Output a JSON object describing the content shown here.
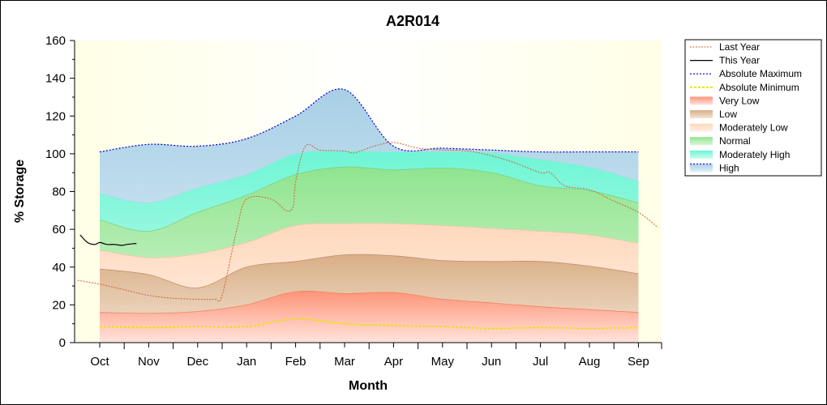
{
  "chart_data": {
    "type": "area",
    "title": "A2R014",
    "xlabel": "Month",
    "ylabel": "% Storage",
    "ylim": [
      0,
      160
    ],
    "yticks": [
      0,
      20,
      40,
      60,
      80,
      100,
      120,
      140,
      160
    ],
    "categories": [
      "Oct",
      "Nov",
      "Dec",
      "Jan",
      "Feb",
      "Mar",
      "Apr",
      "May",
      "Jun",
      "Jul",
      "Aug",
      "Sep"
    ],
    "grid": false,
    "legend_position": "right",
    "colors": {
      "very_low": "#ff9a80",
      "low": "#dcb48c",
      "moderately_low": "#ffdcc0",
      "normal": "#96e696",
      "moderately_high": "#78f0d2",
      "high": "#a0c8e6",
      "last_year": "#cc6633",
      "this_year": "#000000",
      "absolute_maximum": "#0000cc",
      "absolute_minimum": "#e6e600",
      "plot_background": "#fffff0"
    },
    "bands_x": [
      0,
      1,
      2,
      3,
      4,
      5,
      6,
      7,
      8,
      9,
      10,
      11
    ],
    "boundaries": {
      "absolute_minimum": [
        8.5,
        8,
        8.5,
        8.5,
        12.5,
        10,
        9,
        8.5,
        7.5,
        8,
        7.5,
        8
      ],
      "very_low_top": [
        16,
        15.5,
        16.5,
        20,
        27,
        26,
        26.5,
        23,
        21,
        19,
        17.5,
        16
      ],
      "low_top": [
        39,
        36,
        29,
        40,
        43,
        46.5,
        46,
        43.5,
        43,
        43,
        40.5,
        36.5
      ],
      "moderately_low_top": [
        49,
        45,
        47,
        53,
        62,
        63,
        63,
        62,
        60.5,
        59,
        57,
        52.5
      ],
      "normal_top": [
        65,
        59,
        69,
        78,
        89,
        93,
        91.5,
        92.5,
        90,
        83,
        80.5,
        74
      ],
      "moderately_high_top": [
        79,
        74,
        82,
        89,
        100,
        101.5,
        101,
        101,
        100.5,
        97,
        93,
        85.5
      ],
      "absolute_maximum": [
        101,
        105,
        104,
        108,
        120,
        134,
        104,
        103,
        102,
        101,
        101,
        101
      ]
    },
    "series": [
      {
        "name": "Last Year",
        "x": [
          -0.45,
          0,
          0.5,
          1,
          1.5,
          2,
          2.35,
          2.5,
          2.8,
          3,
          3.5,
          3.8,
          3.95,
          4,
          4.2,
          4.5,
          5,
          5.2,
          5.6,
          6,
          6.5,
          7,
          7.5,
          8,
          8.5,
          9,
          9.2,
          9.5,
          10,
          10.5,
          11,
          11.4
        ],
        "values": [
          33,
          31,
          28,
          25,
          23.5,
          23,
          23,
          25,
          60,
          76,
          76,
          70,
          72,
          85,
          104,
          102,
          101.5,
          100.5,
          104,
          106,
          103,
          102,
          101.5,
          99,
          95,
          90,
          90,
          83,
          81,
          75,
          69,
          61
        ]
      },
      {
        "name": "This Year",
        "x": [
          -0.4,
          -0.25,
          -0.1,
          0,
          0.15,
          0.3,
          0.45,
          0.55,
          0.75
        ],
        "values": [
          57,
          53,
          52,
          53,
          52,
          52,
          51.5,
          52,
          52.5
        ]
      }
    ],
    "legend": [
      "Last Year",
      "This Year",
      "Absolute Maximum",
      "Absolute Minimum",
      "Very Low",
      "Low",
      "Moderately Low",
      "Normal",
      "Moderately High",
      "High"
    ]
  }
}
